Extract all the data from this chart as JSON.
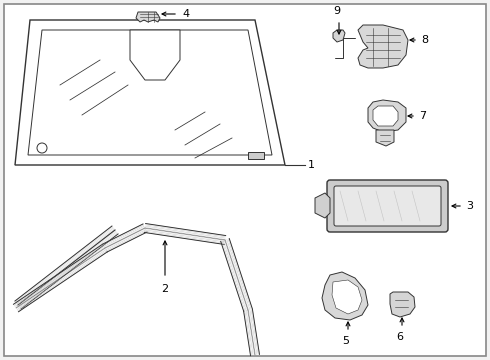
{
  "bg_color": "#f2f2f2",
  "panel_bg": "#ffffff",
  "line_color": "#333333",
  "label_color": "#000000",
  "fig_width": 4.9,
  "fig_height": 3.6,
  "dpi": 100
}
